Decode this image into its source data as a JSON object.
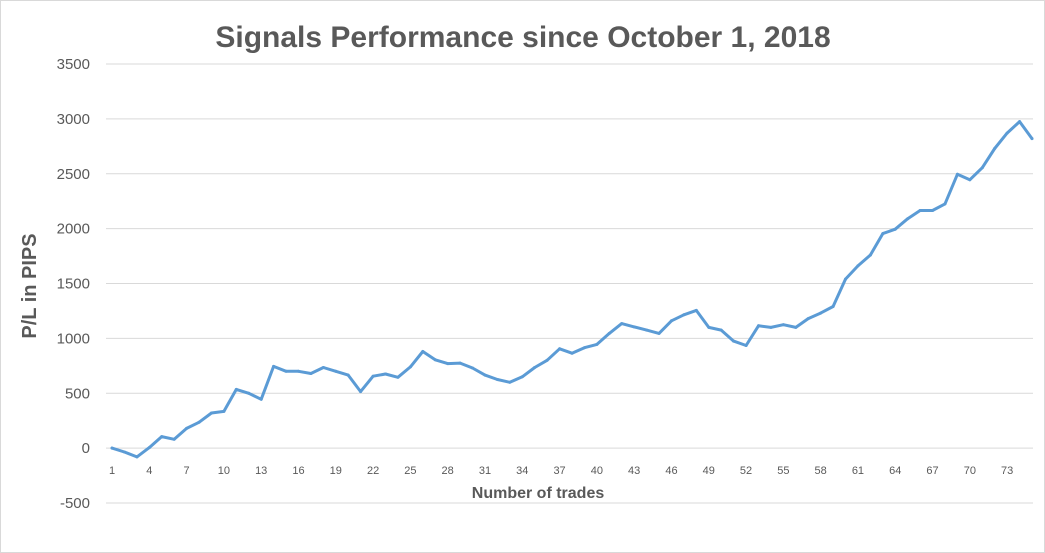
{
  "chart_data": {
    "type": "line",
    "title": "Signals Performance since October 1, 2018",
    "xlabel": "Number of trades",
    "ylabel": "P/L in PIPS",
    "ylim": [
      -500,
      3500
    ],
    "yticks": [
      3500,
      3000,
      2500,
      2000,
      1500,
      1000,
      500,
      0,
      -500
    ],
    "x_tick_labels": [
      1,
      4,
      7,
      10,
      13,
      16,
      19,
      22,
      25,
      28,
      31,
      34,
      37,
      40,
      43,
      46,
      49,
      52,
      55,
      58,
      61,
      64,
      67,
      70,
      73
    ],
    "grid": true,
    "legend": "none",
    "x": [
      1,
      2,
      3,
      4,
      5,
      6,
      7,
      8,
      9,
      10,
      11,
      12,
      13,
      14,
      15,
      16,
      17,
      18,
      19,
      20,
      21,
      22,
      23,
      24,
      25,
      26,
      27,
      28,
      29,
      30,
      31,
      32,
      33,
      34,
      35,
      36,
      37,
      38,
      39,
      40,
      41,
      42,
      43,
      44,
      45,
      46,
      47,
      48,
      49,
      50,
      51,
      52,
      53,
      54,
      55,
      56,
      57,
      58,
      59,
      60,
      61,
      62,
      63,
      64,
      65,
      66,
      67,
      68,
      69,
      70,
      71,
      72,
      73,
      74,
      75
    ],
    "series": [
      {
        "color": "#5b9bd5",
        "values": [
          0,
          -35,
          -80,
          5,
          105,
          80,
          180,
          235,
          320,
          335,
          535,
          500,
          445,
          745,
          700,
          700,
          680,
          735,
          700,
          665,
          515,
          655,
          675,
          645,
          740,
          880,
          805,
          770,
          775,
          730,
          665,
          625,
          600,
          650,
          735,
          800,
          905,
          865,
          915,
          945,
          1045,
          1135,
          1105,
          1075,
          1045,
          1160,
          1215,
          1255,
          1100,
          1075,
          975,
          935,
          1115,
          1100,
          1125,
          1100,
          1180,
          1230,
          1290,
          1540,
          1660,
          1760,
          1955,
          1995,
          2090,
          2165,
          2165,
          2225,
          2495,
          2445,
          2555,
          2730,
          2870,
          2975,
          2820
        ]
      }
    ]
  }
}
